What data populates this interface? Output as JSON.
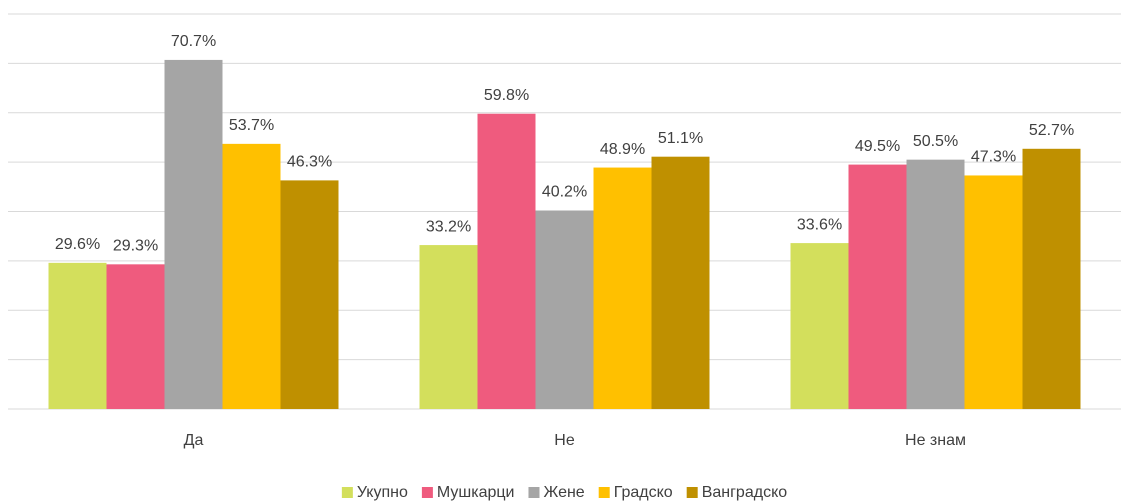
{
  "chart_data": {
    "type": "bar",
    "categories": [
      "Да",
      "Не",
      "Не знам"
    ],
    "series": [
      {
        "name": "Укупно",
        "color": "#d3df5c",
        "values": [
          29.6,
          33.2,
          33.6
        ],
        "value_labels": [
          "29.6%",
          "33.2%",
          "33.6%"
        ]
      },
      {
        "name": "Мушкарци",
        "color": "#ef5b7e",
        "values": [
          29.3,
          59.8,
          49.5
        ],
        "value_labels": [
          "29.3%",
          "59.8%",
          "49.5%"
        ]
      },
      {
        "name": "Жене",
        "color": "#a5a5a5",
        "values": [
          70.7,
          40.2,
          50.5
        ],
        "value_labels": [
          "70.7%",
          "40.2%",
          "50.5%"
        ]
      },
      {
        "name": "Градско",
        "color": "#ffc000",
        "values": [
          53.7,
          48.9,
          47.3
        ],
        "value_labels": [
          "53.7%",
          "48.9%",
          "47.3%"
        ]
      },
      {
        "name": "Ванградско",
        "color": "#bf9000",
        "values": [
          46.3,
          51.1,
          52.7
        ],
        "value_labels": [
          "46.3%",
          "51.1%",
          "52.7%"
        ]
      }
    ],
    "ylim": [
      0,
      80
    ],
    "yticks": [
      0,
      10,
      20,
      30,
      40,
      50,
      60,
      70,
      80
    ],
    "grid": true,
    "legend": "bottom"
  }
}
